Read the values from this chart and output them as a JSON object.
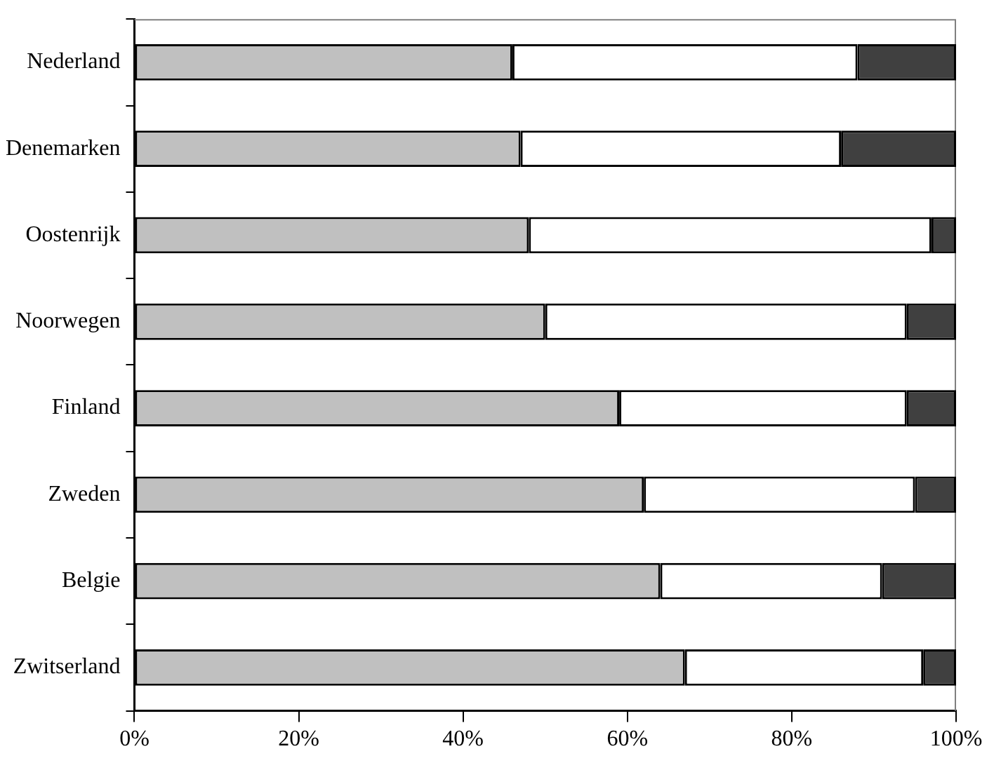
{
  "chart_data": {
    "type": "bar",
    "orientation": "horizontal",
    "stacked": true,
    "categories": [
      "Nederland",
      "Denemarken",
      "Oostenrijk",
      "Noorwegen",
      "Finland",
      "Zweden",
      "Belgie",
      "Zwitserland"
    ],
    "series": [
      {
        "color": "#c0c0c0",
        "values": [
          46,
          47,
          48,
          50,
          59,
          62,
          64,
          67
        ]
      },
      {
        "color": "#ffffff",
        "values": [
          42,
          39,
          49,
          44,
          35,
          33,
          27,
          29
        ]
      },
      {
        "color": "#404040",
        "values": [
          12,
          14,
          3,
          6,
          6,
          5,
          9,
          4
        ]
      }
    ],
    "xlim": [
      0,
      100
    ],
    "xticks": [
      {
        "value": 0,
        "label": "0%"
      },
      {
        "value": 20,
        "label": "20%"
      },
      {
        "value": 40,
        "label": "40%"
      },
      {
        "value": 60,
        "label": "60%"
      },
      {
        "value": 80,
        "label": "80%"
      },
      {
        "value": 100,
        "label": "100%"
      }
    ],
    "grid": false,
    "legend": false
  }
}
